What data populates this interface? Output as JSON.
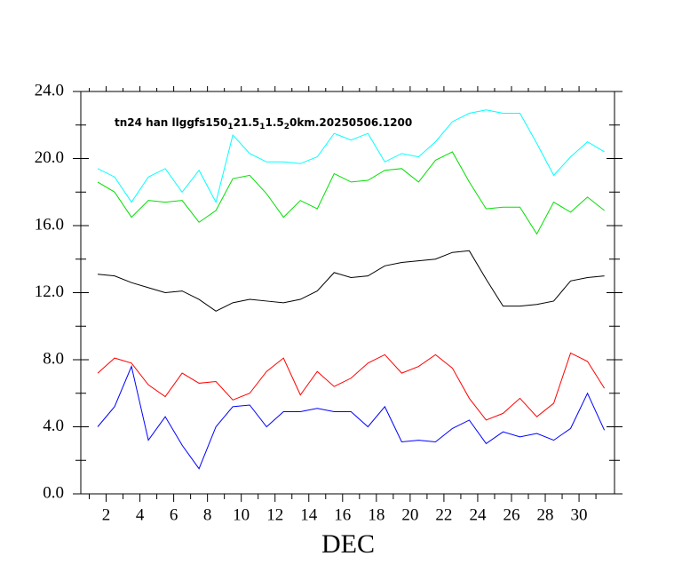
{
  "chart_data": {
    "type": "line",
    "title_parts": [
      "tn24 han llggfs150",
      "1",
      "21.5",
      "1",
      "1.5",
      "2",
      "0km.20250506.1200"
    ],
    "xlabel": "DEC",
    "x": [
      1.5,
      2.5,
      3.5,
      4.5,
      5.5,
      6.5,
      7.5,
      8.5,
      9.5,
      10.5,
      11.5,
      12.5,
      13.5,
      14.5,
      15.5,
      16.5,
      17.5,
      18.5,
      19.5,
      20.5,
      21.5,
      22.5,
      23.5,
      24.5,
      25.5,
      26.5,
      27.5,
      28.5,
      29.5,
      30.5,
      31.5
    ],
    "xlim": [
      0.5,
      32.1
    ],
    "xticks": [
      2,
      4,
      6,
      8,
      10,
      12,
      14,
      16,
      18,
      20,
      22,
      24,
      26,
      28,
      30
    ],
    "xminorticks": [
      1,
      3,
      5,
      7,
      9,
      11,
      13,
      15,
      17,
      19,
      21,
      23,
      25,
      27,
      29,
      31
    ],
    "ylim": [
      0,
      24
    ],
    "yticks": [
      {
        "value": 0,
        "label": "0.0"
      },
      {
        "value": 4,
        "label": "4.0"
      },
      {
        "value": 8,
        "label": "8.0"
      },
      {
        "value": 12,
        "label": "12.0"
      },
      {
        "value": 16,
        "label": "16.0"
      },
      {
        "value": 20,
        "label": "20.0"
      },
      {
        "value": 24,
        "label": "24.0"
      }
    ],
    "yminorticks": [
      2,
      6,
      10,
      14,
      18,
      22
    ],
    "series": [
      {
        "color": "#00ffff",
        "values": [
          19.4,
          18.9,
          17.4,
          18.9,
          19.4,
          18.0,
          19.3,
          17.4,
          21.4,
          20.3,
          19.8,
          19.8,
          19.7,
          20.1,
          21.5,
          21.1,
          21.5,
          19.8,
          20.3,
          20.1,
          21.0,
          22.2,
          22.7,
          22.9,
          22.7,
          22.7,
          20.9,
          19.0,
          20.1,
          21.0,
          20.4
        ]
      },
      {
        "color": "#00e000",
        "values": [
          18.6,
          18.0,
          16.5,
          17.5,
          17.4,
          17.5,
          16.2,
          16.9,
          18.8,
          19.0,
          17.9,
          16.5,
          17.5,
          17.0,
          19.1,
          18.6,
          18.7,
          19.3,
          19.4,
          18.6,
          19.9,
          20.4,
          18.6,
          17.0,
          17.1,
          17.1,
          15.5,
          17.4,
          16.8,
          17.7,
          16.9
        ]
      },
      {
        "color": "#000000",
        "values": [
          13.1,
          13.0,
          12.6,
          12.3,
          12.0,
          12.1,
          11.6,
          10.9,
          11.4,
          11.6,
          11.5,
          11.4,
          11.6,
          12.1,
          13.2,
          12.9,
          13.0,
          13.6,
          13.8,
          13.9,
          14.0,
          14.4,
          14.5,
          12.8,
          11.2,
          11.2,
          11.3,
          11.5,
          12.7,
          12.9,
          13.0
        ]
      },
      {
        "color": "#ff0000",
        "values": [
          7.2,
          8.1,
          7.8,
          6.5,
          5.8,
          7.2,
          6.6,
          6.7,
          5.6,
          6.0,
          7.3,
          8.1,
          5.9,
          7.3,
          6.4,
          6.9,
          7.8,
          8.3,
          7.2,
          7.6,
          8.3,
          7.5,
          5.7,
          4.4,
          4.8,
          5.7,
          4.6,
          5.4,
          8.4,
          7.9,
          6.3
        ]
      },
      {
        "color": "#0000ff",
        "values": [
          4.0,
          5.2,
          7.6,
          3.2,
          4.6,
          2.9,
          1.5,
          4.0,
          5.2,
          5.3,
          4.0,
          4.9,
          4.9,
          5.1,
          4.9,
          4.9,
          4.0,
          5.2,
          3.1,
          3.2,
          3.1,
          3.9,
          4.4,
          3.0,
          3.7,
          3.4,
          3.6,
          3.2,
          3.9,
          6.0,
          3.8
        ]
      }
    ]
  }
}
